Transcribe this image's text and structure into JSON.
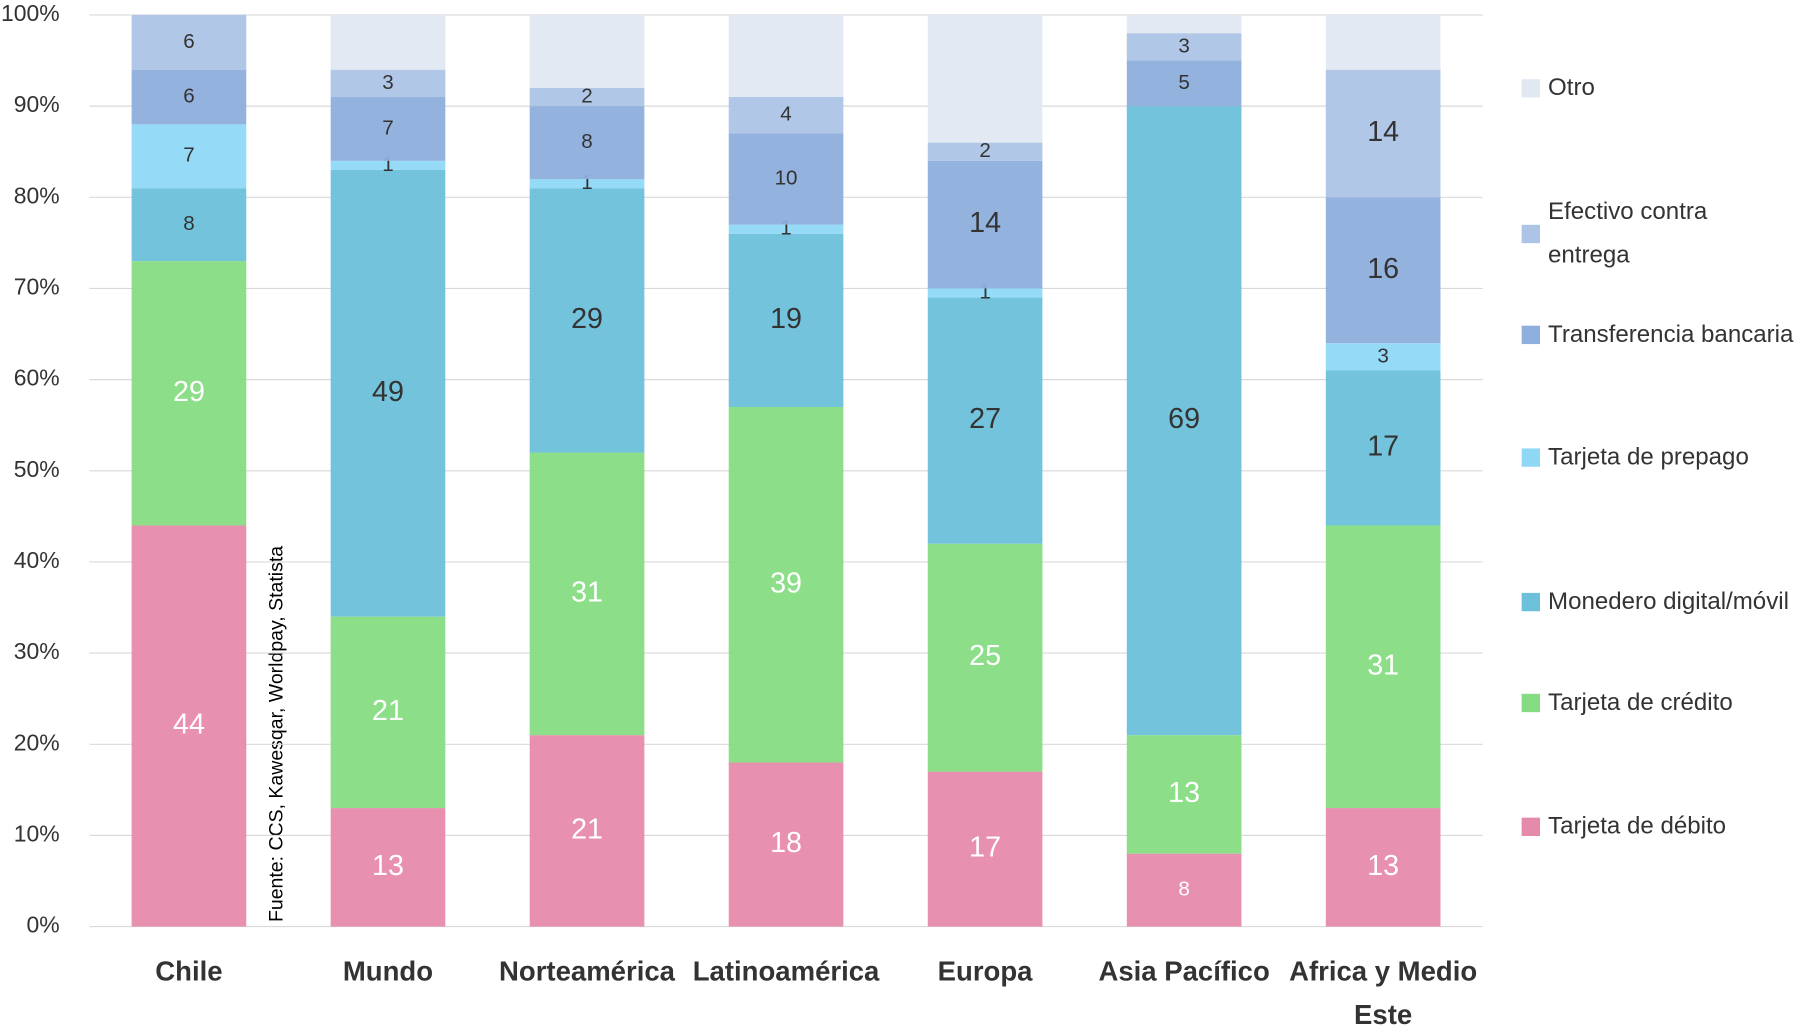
{
  "chart_data": {
    "type": "stacked_bar",
    "source": "Fuente: CCS, Kawesqar, Worldpay, Statista",
    "categories": [
      "Chile",
      "Mundo",
      "Norteamérica",
      "Latinoamérica",
      "Europa",
      "Asia Pacífico",
      "Africa y Medio Este"
    ],
    "series": [
      {
        "name": "Tarjeta de débito",
        "color": "#e68aab",
        "label_color": "#ffffff",
        "values": [
          44,
          13,
          21,
          18,
          17,
          8,
          13
        ]
      },
      {
        "name": "Tarjeta de crédito",
        "color": "#86dc82",
        "label_color": "#ffffff",
        "values": [
          29,
          21,
          31,
          39,
          25,
          13,
          31
        ]
      },
      {
        "name": "Monedero digital/móvil",
        "color": "#6cc0da",
        "label_color": "#333333",
        "values": [
          8,
          49,
          29,
          19,
          27,
          69,
          17
        ]
      },
      {
        "name": "Tarjeta de prepago",
        "color": "#8fd8f5",
        "label_color": "#333333",
        "values": [
          7,
          1,
          1,
          1,
          1,
          0,
          3
        ]
      },
      {
        "name": "Transferencia bancaria",
        "color": "#8eaedc",
        "label_color": "#333333",
        "values": [
          6,
          7,
          8,
          10,
          14,
          5,
          16
        ]
      },
      {
        "name": "Efectivo contra entrega",
        "color": "#adc4e6",
        "label_color": "#333333",
        "values": [
          6,
          3,
          2,
          4,
          2,
          3,
          14
        ]
      },
      {
        "name": "Otro",
        "color": "#e2e8f2",
        "label_color": "#333333",
        "show_labels": false,
        "values": [
          0,
          6,
          8,
          9,
          14,
          2,
          6
        ]
      }
    ],
    "ylim": [
      0,
      100
    ],
    "yticks": [
      {
        "value": 0,
        "label": "0%"
      },
      {
        "value": 10,
        "label": "10%"
      },
      {
        "value": 20,
        "label": "20%"
      },
      {
        "value": 30,
        "label": "30%"
      },
      {
        "value": 40,
        "label": "40%"
      },
      {
        "value": 50,
        "label": "50%"
      },
      {
        "value": 60,
        "label": "60%"
      },
      {
        "value": 70,
        "label": "70%"
      },
      {
        "value": 80,
        "label": "80%"
      },
      {
        "value": 90,
        "label": "90%"
      },
      {
        "value": 100,
        "label": "100%"
      }
    ],
    "grid": true,
    "legend": "right"
  }
}
